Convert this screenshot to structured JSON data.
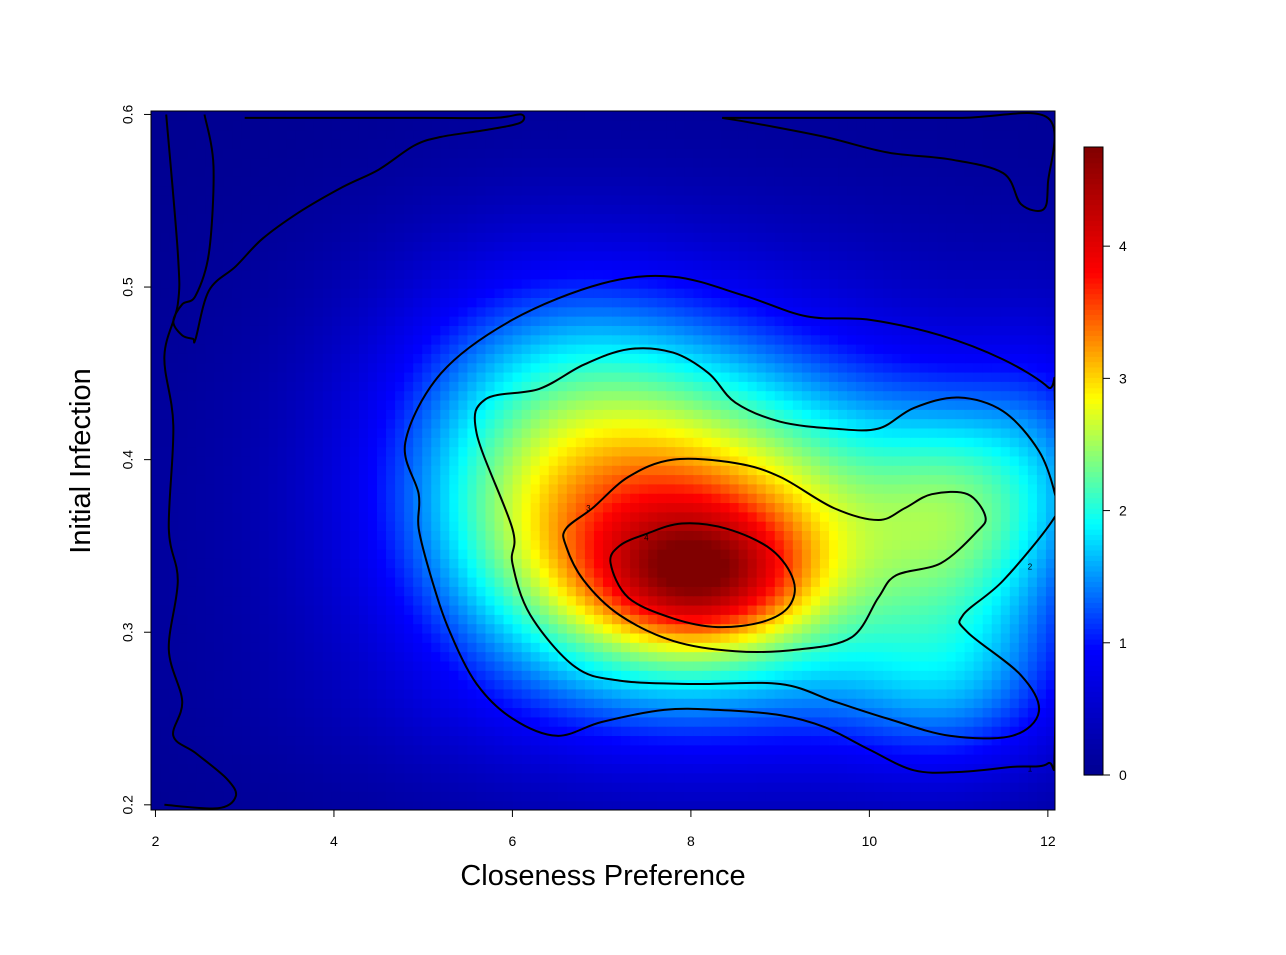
{
  "chart_data": {
    "type": "heatmap",
    "title": "",
    "xlabel": "Closeness Preference",
    "ylabel": "Initial Infection",
    "xlim": [
      1.95,
      12.08
    ],
    "ylim": [
      0.197,
      0.602
    ],
    "x_ticks": [
      "2",
      "4",
      "6",
      "8",
      "10",
      "12"
    ],
    "x_tick_values": [
      2,
      4,
      6,
      8,
      10,
      12
    ],
    "y_ticks": [
      "0.2",
      "0.3",
      "0.4",
      "0.5",
      "0.6"
    ],
    "y_tick_values": [
      0.2,
      0.3,
      0.4,
      0.5,
      0.6
    ],
    "colorbar": {
      "min": 0,
      "max": 4.75,
      "ticks": [
        "0",
        "1",
        "2",
        "3",
        "4"
      ],
      "tick_values": [
        0,
        1,
        2,
        3,
        4
      ],
      "palette": [
        "#00008F",
        "#0000FF",
        "#00FFFF",
        "#FFFF00",
        "#FF0000",
        "#800000"
      ]
    },
    "contour_levels": [
      1,
      2,
      3,
      4
    ],
    "contour_labels": [
      "1",
      "2",
      "3",
      "4"
    ],
    "contours": [
      {
        "level": 1,
        "points": [
          [
            4.95,
            0.38
          ],
          [
            4.8,
            0.41
          ],
          [
            5.2,
            0.45
          ],
          [
            6,
            0.481
          ],
          [
            7,
            0.502
          ],
          [
            7.8,
            0.506
          ],
          [
            8.6,
            0.495
          ],
          [
            9.3,
            0.483
          ],
          [
            10,
            0.481
          ],
          [
            10.8,
            0.472
          ],
          [
            11.5,
            0.458
          ],
          [
            12,
            0.442
          ],
          [
            12.08,
            0.43
          ],
          [
            12.08,
            0.24
          ],
          [
            12,
            0.224
          ],
          [
            11.6,
            0.222
          ],
          [
            11,
            0.219
          ],
          [
            10.5,
            0.22
          ],
          [
            10,
            0.232
          ],
          [
            9.5,
            0.245
          ],
          [
            9,
            0.252
          ],
          [
            8.3,
            0.255
          ],
          [
            7.7,
            0.255
          ],
          [
            7,
            0.248
          ],
          [
            6.5,
            0.24
          ],
          [
            6,
            0.25
          ],
          [
            5.6,
            0.27
          ],
          [
            5.3,
            0.3
          ],
          [
            5.1,
            0.33
          ],
          [
            4.95,
            0.36
          ]
        ]
      },
      {
        "level": 2,
        "points": [
          [
            6,
            0.34
          ],
          [
            6.2,
            0.31
          ],
          [
            6.7,
            0.28
          ],
          [
            7.2,
            0.272
          ],
          [
            8,
            0.27
          ],
          [
            9,
            0.27
          ],
          [
            9.6,
            0.26
          ],
          [
            10.2,
            0.25
          ],
          [
            10.9,
            0.24
          ],
          [
            11.6,
            0.24
          ],
          [
            11.9,
            0.254
          ],
          [
            11.7,
            0.275
          ],
          [
            11.1,
            0.3
          ],
          [
            11.05,
            0.31
          ],
          [
            11.5,
            0.33
          ],
          [
            12.08,
            0.367
          ],
          [
            12.08,
            0.38
          ],
          [
            11.9,
            0.405
          ],
          [
            11.5,
            0.428
          ],
          [
            11,
            0.436
          ],
          [
            10.5,
            0.43
          ],
          [
            10.1,
            0.418
          ],
          [
            9.6,
            0.418
          ],
          [
            9,
            0.422
          ],
          [
            8.5,
            0.433
          ],
          [
            8.2,
            0.45
          ],
          [
            7.8,
            0.462
          ],
          [
            7.3,
            0.464
          ],
          [
            6.8,
            0.455
          ],
          [
            6.3,
            0.441
          ],
          [
            5.7,
            0.435
          ],
          [
            5.6,
            0.415
          ],
          [
            6,
            0.36
          ]
        ]
      },
      {
        "level": 3,
        "points": [
          [
            6.6,
            0.35
          ],
          [
            6.8,
            0.33
          ],
          [
            7.2,
            0.31
          ],
          [
            7.8,
            0.295
          ],
          [
            8.5,
            0.289
          ],
          [
            9.2,
            0.29
          ],
          [
            9.8,
            0.297
          ],
          [
            10.1,
            0.32
          ],
          [
            10.3,
            0.333
          ],
          [
            10.8,
            0.34
          ],
          [
            11.2,
            0.358
          ],
          [
            11.3,
            0.367
          ],
          [
            11.1,
            0.38
          ],
          [
            10.7,
            0.38
          ],
          [
            10.4,
            0.372
          ],
          [
            10.1,
            0.365
          ],
          [
            9.6,
            0.372
          ],
          [
            9,
            0.39
          ],
          [
            8.5,
            0.398
          ],
          [
            7.8,
            0.4
          ],
          [
            7.3,
            0.39
          ],
          [
            6.9,
            0.372
          ],
          [
            6.6,
            0.36
          ]
        ]
      },
      {
        "level": 4,
        "points": [
          [
            7.1,
            0.34
          ],
          [
            7.3,
            0.32
          ],
          [
            7.8,
            0.308
          ],
          [
            8.3,
            0.303
          ],
          [
            8.8,
            0.306
          ],
          [
            9.1,
            0.315
          ],
          [
            9.15,
            0.33
          ],
          [
            8.9,
            0.348
          ],
          [
            8.4,
            0.36
          ],
          [
            7.9,
            0.363
          ],
          [
            7.5,
            0.357
          ],
          [
            7.2,
            0.35
          ]
        ]
      },
      {
        "level": 0,
        "points": [
          [
            3,
            0.598
          ],
          [
            5,
            0.598
          ],
          [
            5.8,
            0.598
          ],
          [
            6.1,
            0.6
          ],
          [
            6.08,
            0.595
          ],
          [
            5.7,
            0.591
          ],
          [
            5.2,
            0.587
          ],
          [
            4.9,
            0.582
          ],
          [
            4.5,
            0.568
          ],
          [
            4.1,
            0.558
          ],
          [
            3.6,
            0.543
          ],
          [
            3.2,
            0.528
          ],
          [
            2.9,
            0.512
          ],
          [
            2.6,
            0.498
          ],
          [
            2.45,
            0.47
          ],
          [
            2.42,
            0.47
          ],
          [
            2.3,
            0.472
          ],
          [
            2.2,
            0.48
          ],
          [
            2.3,
            0.49
          ],
          [
            2.45,
            0.495
          ],
          [
            2.6,
            0.52
          ],
          [
            2.65,
            0.57
          ],
          [
            2.55,
            0.6
          ]
        ]
      },
      {
        "level": 0,
        "points": [
          [
            8.35,
            0.598
          ],
          [
            8.7,
            0.595
          ],
          [
            9.5,
            0.587
          ],
          [
            10.2,
            0.578
          ],
          [
            10.9,
            0.574
          ],
          [
            11.5,
            0.566
          ],
          [
            11.7,
            0.548
          ],
          [
            11.95,
            0.545
          ],
          [
            12,
            0.56
          ],
          [
            12,
            0.598
          ],
          [
            11,
            0.598
          ],
          [
            9.5,
            0.598
          ],
          [
            8.35,
            0.598
          ]
        ]
      },
      {
        "level": 0,
        "points": [
          [
            2.12,
            0.6
          ],
          [
            2.25,
            0.52
          ],
          [
            2.25,
            0.49
          ],
          [
            2.1,
            0.46
          ],
          [
            2.2,
            0.42
          ],
          [
            2.15,
            0.36
          ],
          [
            2.25,
            0.33
          ],
          [
            2.15,
            0.29
          ],
          [
            2.3,
            0.26
          ],
          [
            2.2,
            0.24
          ],
          [
            2.45,
            0.23
          ],
          [
            2.8,
            0.215
          ],
          [
            2.9,
            0.205
          ],
          [
            2.7,
            0.198
          ],
          [
            2.1,
            0.2
          ]
        ]
      }
    ]
  }
}
